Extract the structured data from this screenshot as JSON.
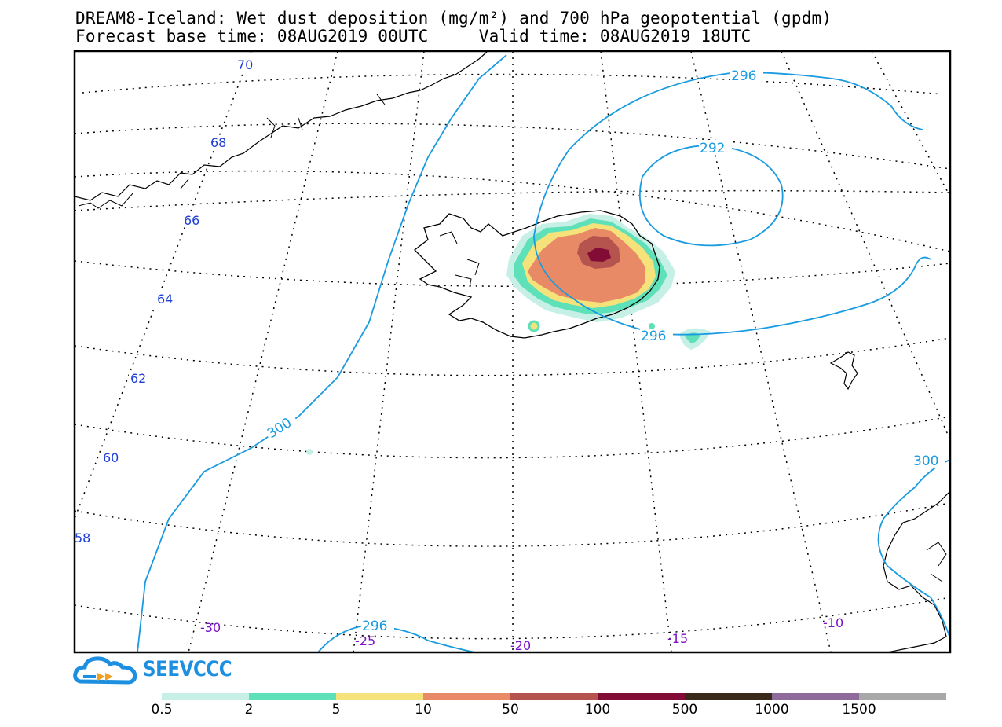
{
  "title": {
    "line1": "DREAM8-Iceland: Wet dust deposition (mg/m²) and 700 hPa geopotential (gpdm)",
    "line2_base_label": "Forecast base time: 08AUG2019 00UTC",
    "line2_valid_label": "Valid time: 08AUG2019 18UTC"
  },
  "map": {
    "region": "Iceland and North Atlantic",
    "latitude_labels": [
      "70",
      "68",
      "66",
      "64",
      "62",
      "60",
      "58"
    ],
    "longitude_labels": [
      "-30",
      "-25",
      "-20",
      "-15",
      "-10"
    ],
    "geopotential_contour_labels": [
      "296",
      "292",
      "296",
      "300",
      "296",
      "300"
    ],
    "dust_source": "Iceland interior (Vatnajökull area)"
  },
  "colors": {
    "contour": "#1a9be0",
    "lat_label": "#1d3fd6",
    "lon_label": "#7a10c8"
  },
  "legend": {
    "ticks": [
      "0.5",
      "2",
      "5",
      "10",
      "50",
      "100",
      "500",
      "1000",
      "1500"
    ],
    "colors": [
      "#c6f0e6",
      "#5ee0b8",
      "#f5e27a",
      "#e88a66",
      "#b5544e",
      "#820c36",
      "#3a2a1a",
      "#8f6b9c",
      "#a8a8a8"
    ]
  },
  "logo": {
    "text": "SEEVCCC",
    "icon": "cloud-logo-icon"
  }
}
